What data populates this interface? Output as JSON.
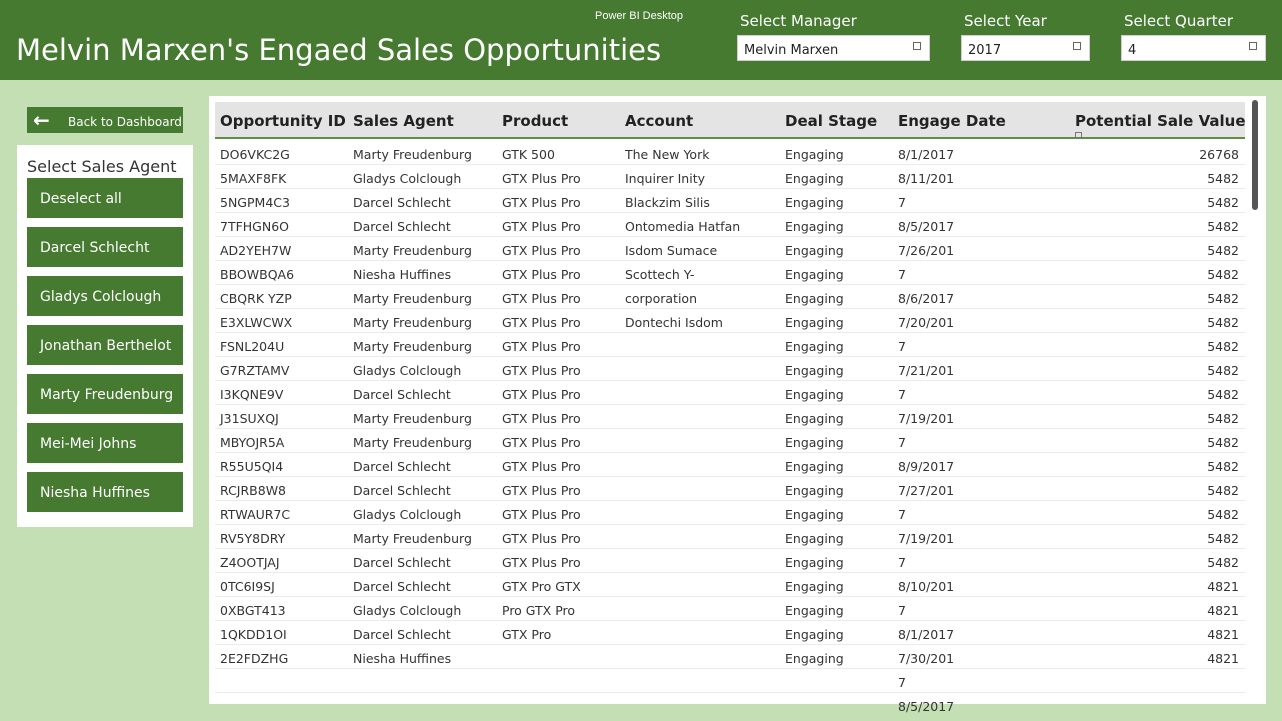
{
  "header": {
    "app_name": "Power BI Desktop",
    "title": "Melvin Marxen's Engaed Sales Opportunities"
  },
  "slicers": [
    {
      "label": "Select Manager",
      "value": "Melvin Marxen"
    },
    {
      "label": "Select Year",
      "value": "2017"
    },
    {
      "label": "Select Quarter",
      "value": "4"
    }
  ],
  "back_button": {
    "label": "Back to Dashboard"
  },
  "agent_panel": {
    "title": "Select Sales Agent",
    "buttons": [
      "Deselect all",
      "Darcel Schlecht",
      "Gladys Colclough",
      "Jonathan Berthelot",
      "Marty Freudenburg",
      "Mei-Mei Johns",
      "Niesha Huffines"
    ]
  },
  "colors": {
    "header": "#457a30",
    "background": "#c5dfb5",
    "button": "#457a30"
  },
  "table": {
    "columns": [
      "Opportunity ID",
      "Sales Agent",
      "Product",
      "Account",
      "Deal Stage",
      "Engage Date",
      "Potential Sale Value"
    ],
    "rows": [
      [
        "DO6VKC2G",
        "Marty Freudenburg",
        "GTK 500",
        "The New York",
        "Engaging",
        "8/1/2017",
        "26768"
      ],
      [
        "5MAXF8FK",
        "Gladys Colclough",
        "GTX Plus Pro",
        "Inquirer Inity",
        "Engaging",
        "8/11/201",
        "5482"
      ],
      [
        "5NGPM4C3",
        "Darcel Schlecht",
        "GTX Plus Pro",
        "Blackzim Silis",
        "Engaging",
        "7",
        "5482"
      ],
      [
        "7TFHGN6O",
        "Darcel Schlecht",
        "GTX Plus Pro",
        "Ontomedia Hatfan",
        "Engaging",
        "8/5/2017",
        "5482"
      ],
      [
        "AD2YEH7W",
        "Marty Freudenburg",
        "GTX Plus Pro",
        "Isdom Sumace",
        "Engaging",
        "7/26/201",
        "5482"
      ],
      [
        "BBOWBQA6",
        "Niesha Huffines",
        "GTX Plus Pro",
        "Scottech Y-",
        "Engaging",
        "7",
        "5482"
      ],
      [
        "CBQRK YZP",
        "Marty Freudenburg",
        "GTX Plus Pro",
        "corporation",
        "Engaging",
        "8/6/2017",
        "5482"
      ],
      [
        "E3XLWCWX",
        "Marty Freudenburg",
        "GTX Plus Pro",
        "Dontechi Isdom",
        "Engaging",
        "7/20/201",
        "5482"
      ],
      [
        "FSNL204U",
        "Marty Freudenburg",
        "GTX Plus Pro",
        "",
        "Engaging",
        "7",
        "5482"
      ],
      [
        "G7RZTAMV",
        "Gladys Colclough",
        "GTX Plus Pro",
        "",
        "Engaging",
        "7/21/201",
        "5482"
      ],
      [
        "I3KQNE9V",
        "Darcel Schlecht",
        "GTX Plus Pro",
        "",
        "Engaging",
        "7",
        "5482"
      ],
      [
        "J31SUXQJ",
        "Marty Freudenburg",
        "GTX Plus Pro",
        "",
        "Engaging",
        "7/19/201",
        "5482"
      ],
      [
        "MBYOJR5A",
        "Marty Freudenburg",
        "GTX Plus Pro",
        "",
        "Engaging",
        "7",
        "5482"
      ],
      [
        "R55U5QI4",
        "Darcel Schlecht",
        "GTX Plus Pro",
        "",
        "Engaging",
        "8/9/2017",
        "5482"
      ],
      [
        "RCJRB8W8",
        "Darcel Schlecht",
        "GTX Plus Pro",
        "",
        "Engaging",
        "7/27/201",
        "5482"
      ],
      [
        "RTWAUR7C",
        "Gladys Colclough",
        "GTX Plus Pro",
        "",
        "Engaging",
        "7",
        "5482"
      ],
      [
        "RV5Y8DRY",
        "Marty Freudenburg",
        "GTX Plus Pro",
        "",
        "Engaging",
        "7/19/201",
        "5482"
      ],
      [
        "Z4OOTJAJ",
        "Darcel Schlecht",
        "GTX Plus Pro",
        "",
        "Engaging",
        "7",
        "5482"
      ],
      [
        "0TC6I9SJ",
        "Darcel Schlecht",
        "GTX Pro GTX",
        "",
        "Engaging",
        "8/10/201",
        "4821"
      ],
      [
        "0XBGT413",
        "Gladys Colclough",
        "Pro GTX Pro",
        "",
        "Engaging",
        "7",
        "4821"
      ],
      [
        "1QKDD1OI",
        "Darcel Schlecht",
        "GTX Pro",
        "",
        "Engaging",
        "8/1/2017",
        "4821"
      ],
      [
        "2E2FDZHG",
        "Niesha Huffines",
        "",
        "",
        "Engaging",
        "7/30/201",
        "4821"
      ]
    ],
    "overflow_dates": [
      "7",
      "8/5/2017"
    ]
  }
}
